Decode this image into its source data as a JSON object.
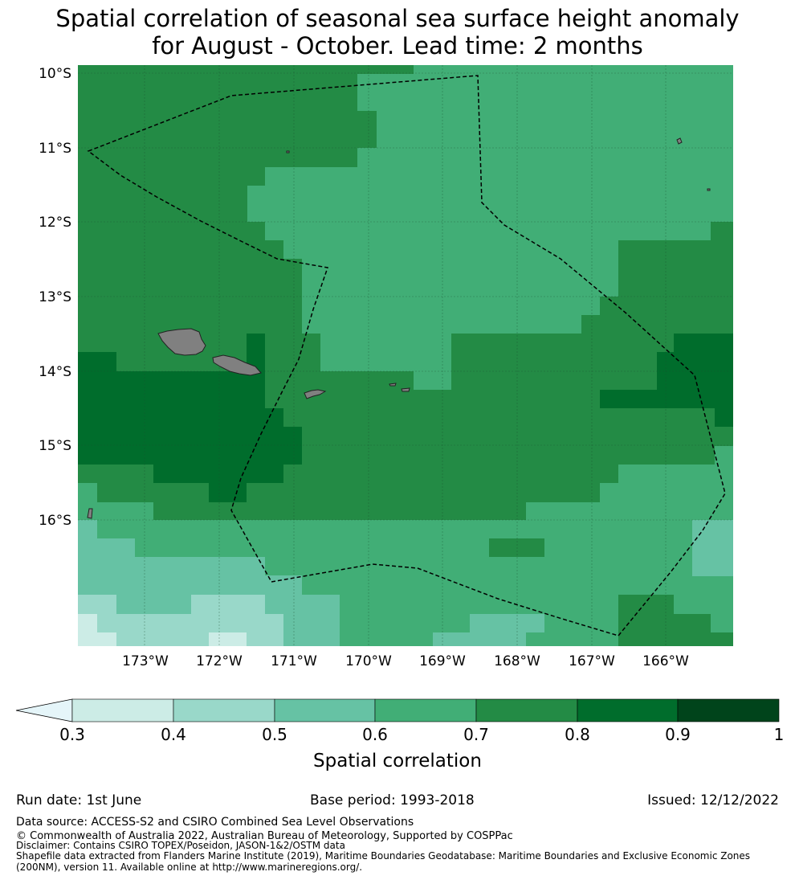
{
  "title": {
    "line1": "Spatial correlation of seasonal sea surface height anomaly",
    "line2": "for August - October. Lead time: 2 months"
  },
  "map": {
    "lat_labels": [
      "10°S",
      "11°S",
      "12°S",
      "13°S",
      "14°S",
      "15°S",
      "16°S"
    ],
    "lon_labels": [
      "173°W",
      "172°W",
      "171°W",
      "170°W",
      "169°W",
      "168°W",
      "167°W",
      "166°W"
    ],
    "eez_boundary_style": "dashed",
    "land_color": "#808080"
  },
  "colorbar": {
    "ticks": [
      "0.3",
      "0.4",
      "0.5",
      "0.6",
      "0.7",
      "0.8",
      "0.9",
      "1"
    ],
    "colors": [
      "#ccece6",
      "#99d8c9",
      "#66c2a4",
      "#41ae76",
      "#238b45",
      "#006d2c",
      "#00441b"
    ],
    "extend_color": "#e5f5f9",
    "label": "Spatial correlation"
  },
  "footer": {
    "run_date": "Run date: 1st June",
    "base_period": "Base period: 1993-2018",
    "issued": "Issued: 12/12/2022",
    "data_source": "Data source: ACCESS-S2 and CSIRO Combined Sea Level Observations",
    "copyright": "© Commonwealth of Australia 2022, Australian Bureau of Meteorology, Supported by COSPPac",
    "disclaimer": "Disclaimer: Contains CSIRO TOPEX/Poseidon, JASON-1&2/OSTM data",
    "shapefile_line1": "Shapefile data extracted from Flanders Marine Institute (2019), Maritime Boundaries Geodatabase: Maritime Boundaries and Exclusive Economic Zones",
    "shapefile_line2": "(200NM), version 11. Available online at http://www.marineregions.org/."
  }
}
